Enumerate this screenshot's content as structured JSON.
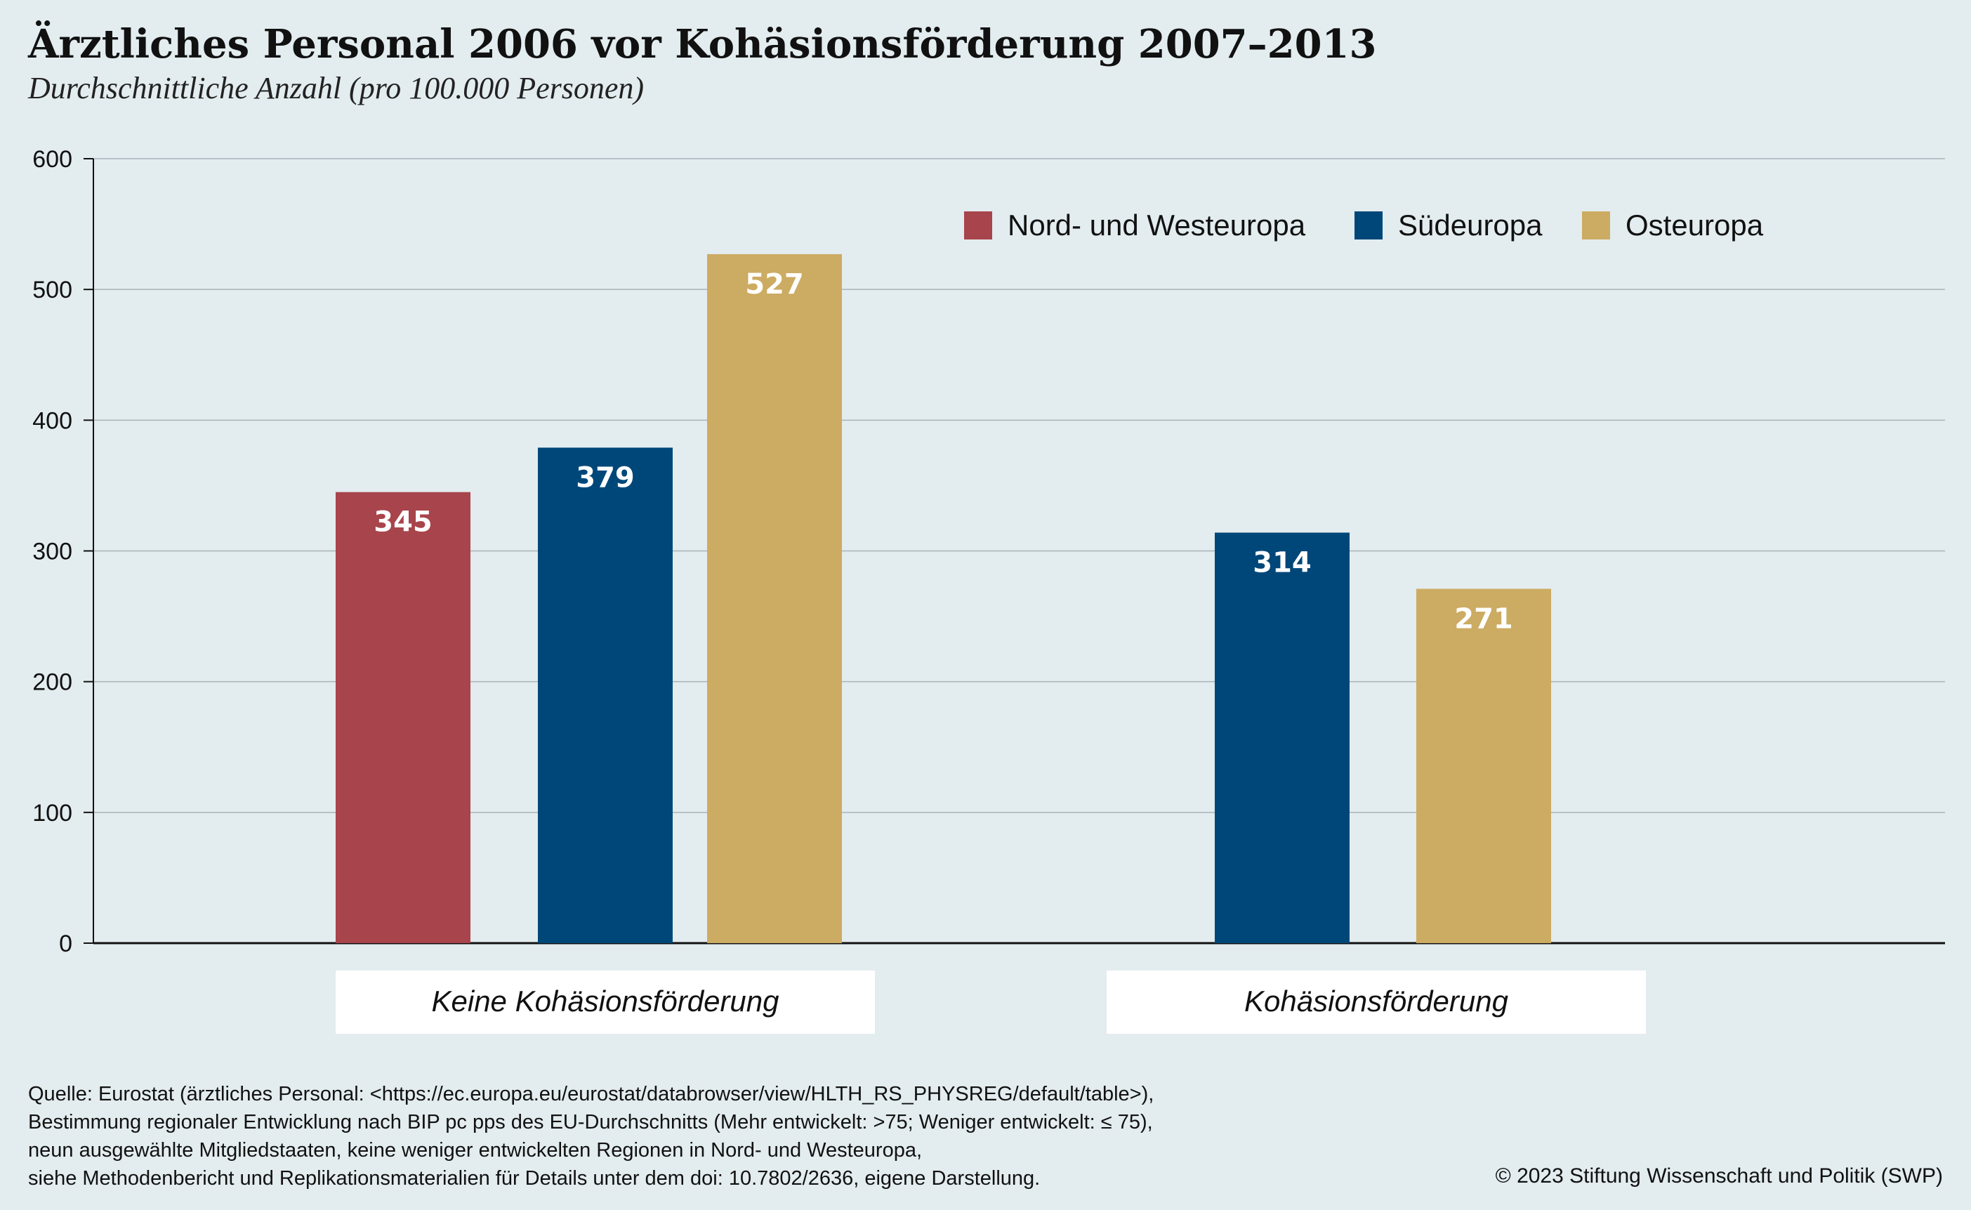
{
  "title": "Ärztliches Personal 2006 vor Kohäsionsförderung 2007–2013",
  "subtitle": "Durchschnittliche Anzahl (pro 100.000 Personen)",
  "chart_data": {
    "type": "bar",
    "categories": [
      "Keine Kohäsionsförderung",
      "Kohäsionsförderung"
    ],
    "series": [
      {
        "name": "Nord- und Westeuropa",
        "color": "#a8444b",
        "values": [
          345,
          null
        ]
      },
      {
        "name": "Südeuropa",
        "color": "#004779",
        "values": [
          379,
          314
        ]
      },
      {
        "name": "Osteuropa",
        "color": "#ccab62",
        "values": [
          527,
          271
        ]
      }
    ],
    "ylim": [
      0,
      600
    ],
    "yticks": [
      0,
      100,
      200,
      300,
      400,
      500,
      600
    ],
    "grid": true,
    "legend_position": "top-right",
    "data_labels": true
  },
  "footnotes": [
    "Quelle: Eurostat (ärztliches Personal: <https://ec.europa.eu/eurostat/databrowser/view/HLTH_RS_PHYSREG/default/table>),",
    "Bestimmung regionaler Entwicklung nach BIP pc pps des EU-Durchschnitts (Mehr entwickelt: >75; Weniger entwickelt: ≤ 75),",
    "neun ausgewählte Mitgliedstaaten, keine weniger entwickelten Regionen in Nord- und Westeuropa,",
    "siehe Methodenbericht und Replikationsmaterialien für Details unter dem doi: 10.7802/2636, eigene Darstellung."
  ],
  "copyright": "© 2023 Stiftung Wissenschaft und Politik (SWP)"
}
